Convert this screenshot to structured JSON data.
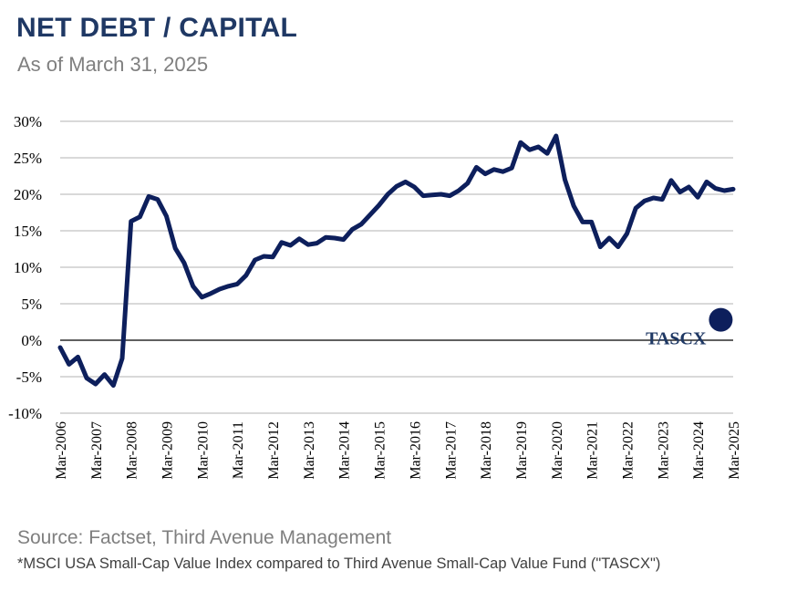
{
  "header": {
    "title": "NET DEBT / CAPITAL",
    "subtitle": "As of March 31, 2025"
  },
  "footer": {
    "source": "Source: Factset, Third Avenue Management",
    "note": "*MSCI USA Small-Cap Value Index compared to Third Avenue Small-Cap Value Fund (\"TASCX\")"
  },
  "colors": {
    "line": "#0d1f5c",
    "marker": "#0d1f5c",
    "annotation": "#1f3864",
    "grid": "#d9d9d9",
    "zero_line": "#000000"
  },
  "chart_data": {
    "type": "line",
    "ylim": [
      -10,
      30
    ],
    "yticks": [
      30,
      25,
      20,
      15,
      10,
      5,
      0,
      -5,
      -10
    ],
    "ytick_labels": [
      "30%",
      "25%",
      "20%",
      "15%",
      "10%",
      "5%",
      "0%",
      "-5%",
      "-10%"
    ],
    "xlim": [
      2006.0,
      2025.0
    ],
    "xtick_labels": [
      "Mar-2006",
      "Mar-2007",
      "Mar-2008",
      "Mar-2009",
      "Mar-2010",
      "Mar-2011",
      "Mar-2012",
      "Mar-2013",
      "Mar-2014",
      "Mar-2015",
      "Mar-2016",
      "Mar-2017",
      "Mar-2018",
      "Mar-2019",
      "Mar-2020",
      "Mar-2021",
      "Mar-2022",
      "Mar-2023",
      "Mar-2024",
      "Mar-2025"
    ],
    "grid": true,
    "series": [
      {
        "values": [
          [
            2006.0,
            -1.0
          ],
          [
            2006.25,
            -3.3
          ],
          [
            2006.5,
            -2.3
          ],
          [
            2006.75,
            -5.2
          ],
          [
            2007.0,
            -6.0
          ],
          [
            2007.25,
            -4.7
          ],
          [
            2007.5,
            -6.2
          ],
          [
            2007.75,
            -2.5
          ],
          [
            2008.0,
            16.3
          ],
          [
            2008.25,
            16.9
          ],
          [
            2008.5,
            19.7
          ],
          [
            2008.75,
            19.3
          ],
          [
            2009.0,
            17.0
          ],
          [
            2009.25,
            12.6
          ],
          [
            2009.5,
            10.6
          ],
          [
            2009.75,
            7.4
          ],
          [
            2010.0,
            5.9
          ],
          [
            2010.25,
            6.4
          ],
          [
            2010.5,
            7.0
          ],
          [
            2010.75,
            7.4
          ],
          [
            2011.0,
            7.7
          ],
          [
            2011.25,
            8.9
          ],
          [
            2011.5,
            11.0
          ],
          [
            2011.75,
            11.5
          ],
          [
            2012.0,
            11.4
          ],
          [
            2012.25,
            13.4
          ],
          [
            2012.5,
            13.0
          ],
          [
            2012.75,
            13.9
          ],
          [
            2013.0,
            13.1
          ],
          [
            2013.25,
            13.3
          ],
          [
            2013.5,
            14.1
          ],
          [
            2013.75,
            14.0
          ],
          [
            2014.0,
            13.8
          ],
          [
            2014.25,
            15.2
          ],
          [
            2014.5,
            15.9
          ],
          [
            2014.75,
            17.2
          ],
          [
            2015.0,
            18.5
          ],
          [
            2015.25,
            20.0
          ],
          [
            2015.5,
            21.1
          ],
          [
            2015.75,
            21.7
          ],
          [
            2016.0,
            21.0
          ],
          [
            2016.25,
            19.8
          ],
          [
            2016.5,
            19.9
          ],
          [
            2016.75,
            20.0
          ],
          [
            2017.0,
            19.8
          ],
          [
            2017.25,
            20.5
          ],
          [
            2017.5,
            21.5
          ],
          [
            2017.75,
            23.7
          ],
          [
            2018.0,
            22.8
          ],
          [
            2018.25,
            23.4
          ],
          [
            2018.5,
            23.1
          ],
          [
            2018.75,
            23.6
          ],
          [
            2019.0,
            27.1
          ],
          [
            2019.25,
            26.1
          ],
          [
            2019.5,
            26.5
          ],
          [
            2019.75,
            25.6
          ],
          [
            2020.0,
            28.0
          ],
          [
            2020.25,
            22.0
          ],
          [
            2020.5,
            18.4
          ],
          [
            2020.75,
            16.2
          ],
          [
            2021.0,
            16.2
          ],
          [
            2021.25,
            12.8
          ],
          [
            2021.5,
            14.0
          ],
          [
            2021.75,
            12.8
          ],
          [
            2022.0,
            14.6
          ],
          [
            2022.25,
            18.1
          ],
          [
            2022.5,
            19.1
          ],
          [
            2022.75,
            19.5
          ],
          [
            2023.0,
            19.3
          ],
          [
            2023.25,
            21.9
          ],
          [
            2023.5,
            20.3
          ],
          [
            2023.75,
            21.0
          ],
          [
            2024.0,
            19.6
          ],
          [
            2024.25,
            21.7
          ],
          [
            2024.5,
            20.8
          ],
          [
            2024.75,
            20.5
          ],
          [
            2025.0,
            20.7
          ]
        ]
      }
    ],
    "annotations": [
      {
        "label": "TASCX",
        "x": 2024.65,
        "y": 2.8
      }
    ]
  }
}
